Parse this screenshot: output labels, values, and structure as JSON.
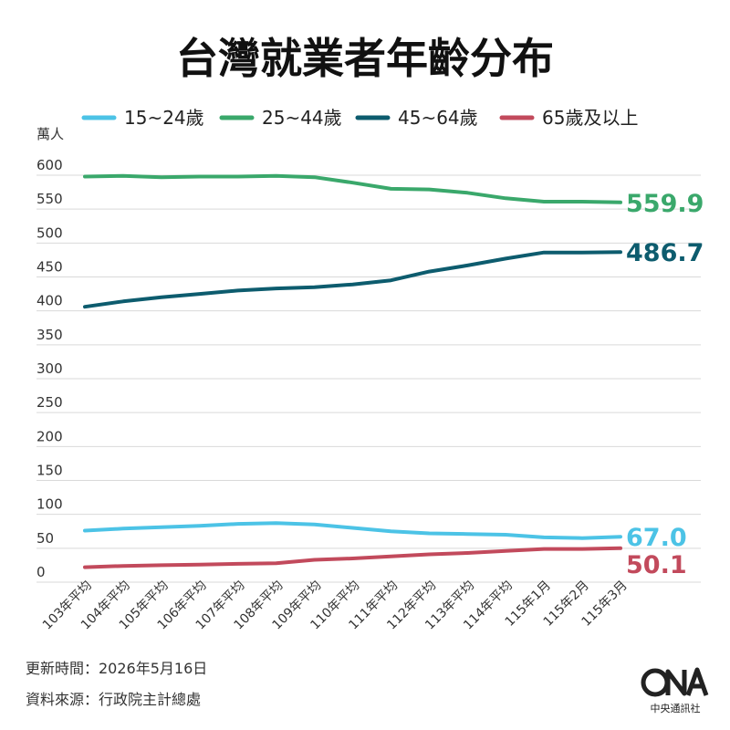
{
  "chart_data": {
    "type": "line",
    "title": "台灣就業者年齡分布",
    "unit_label": "萬人",
    "ylim": [
      0,
      600
    ],
    "yticks": [
      0,
      50,
      100,
      150,
      200,
      250,
      300,
      350,
      400,
      450,
      500,
      550,
      600
    ],
    "grid": true,
    "legend_position": "top",
    "categories": [
      "103年平均",
      "104年平均",
      "105年平均",
      "106年平均",
      "107年平均",
      "108年平均",
      "109年平均",
      "110年平均",
      "111年平均",
      "112年平均",
      "113年平均",
      "114年平均",
      "115年1月",
      "115年2月",
      "115年3月"
    ],
    "series": [
      {
        "name": "15~24歲",
        "color": "#4cc3e6",
        "values": [
          76,
          79,
          81,
          83,
          86,
          87,
          85,
          80,
          75,
          72,
          71,
          70,
          66,
          65,
          67.0
        ],
        "end_label": "67.0"
      },
      {
        "name": "25~44歲",
        "color": "#3aa86b",
        "values": [
          598,
          599,
          597,
          598,
          598,
          599,
          597,
          589,
          580,
          579,
          574,
          566,
          561,
          561,
          559.9
        ],
        "end_label": "559.9"
      },
      {
        "name": "45~64歲",
        "color": "#0d5c6e",
        "values": [
          406,
          414,
          420,
          425,
          430,
          433,
          435,
          439,
          445,
          458,
          467,
          477,
          486,
          486,
          486.7
        ],
        "end_label": "486.7"
      },
      {
        "name": "65歲及以上",
        "color": "#c24a5c",
        "values": [
          22,
          24,
          25,
          26,
          27,
          28,
          33,
          35,
          38,
          41,
          43,
          46,
          49,
          49,
          50.1
        ],
        "end_label": "50.1"
      }
    ]
  },
  "footer": {
    "updated": "更新時間：2026年5月16日",
    "source": "資料來源：行政院主計總處"
  },
  "logo": {
    "mark": "CNA",
    "text": "中央通訊社"
  }
}
